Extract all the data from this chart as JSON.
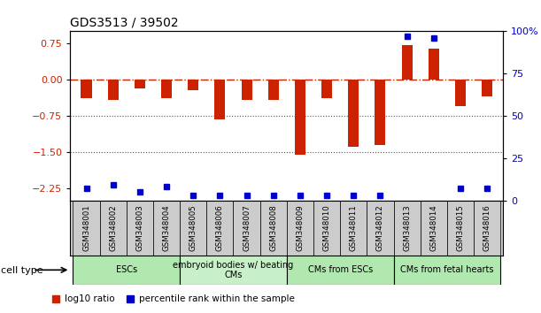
{
  "title": "GDS3513 / 39502",
  "samples": [
    "GSM348001",
    "GSM348002",
    "GSM348003",
    "GSM348004",
    "GSM348005",
    "GSM348006",
    "GSM348007",
    "GSM348008",
    "GSM348009",
    "GSM348010",
    "GSM348011",
    "GSM348012",
    "GSM348013",
    "GSM348014",
    "GSM348015",
    "GSM348016"
  ],
  "log10_ratio": [
    -0.38,
    -0.42,
    -0.18,
    -0.38,
    -0.22,
    -0.82,
    -0.42,
    -0.42,
    -1.55,
    -0.38,
    -1.4,
    -1.35,
    0.72,
    0.65,
    -0.55,
    -0.35
  ],
  "percentile_rank": [
    7,
    9,
    5,
    8,
    3,
    3,
    3,
    3,
    3,
    3,
    3,
    3,
    97,
    96,
    7,
    7
  ],
  "cell_types": [
    {
      "label": "ESCs",
      "start": 0,
      "end": 4,
      "color": "#b0e8b0"
    },
    {
      "label": "embryoid bodies w/ beating\nCMs",
      "start": 4,
      "end": 8,
      "color": "#c8f0c8"
    },
    {
      "label": "CMs from ESCs",
      "start": 8,
      "end": 12,
      "color": "#b0e8b0"
    },
    {
      "label": "CMs from fetal hearts",
      "start": 12,
      "end": 16,
      "color": "#b0e8b0"
    }
  ],
  "ylim_left": [
    -2.5,
    1.0
  ],
  "ylim_right": [
    0,
    100
  ],
  "yticks_left": [
    0.75,
    0,
    -0.75,
    -1.5,
    -2.25
  ],
  "yticks_right": [
    100,
    75,
    50,
    25,
    0
  ],
  "bar_color": "#cc2200",
  "dot_color": "#0000cc",
  "bg_color": "#ffffff",
  "plot_bg": "#ffffff",
  "zero_line_color": "#cc2200",
  "dotted_line_color": "#555555",
  "legend_bar_label": "log10 ratio",
  "legend_dot_label": "percentile rank within the sample",
  "cell_type_label": "cell type"
}
